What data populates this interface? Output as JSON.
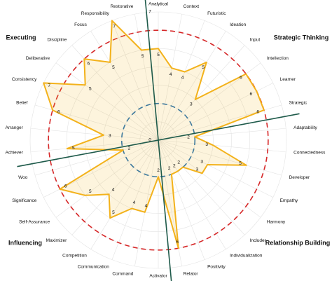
{
  "chart_data": {
    "type": "radar",
    "categories": [
      "Analytical",
      "Context",
      "Futuristic",
      "Ideation",
      "Input",
      "Intellection",
      "Learner",
      "Strategic",
      "Adaptability",
      "Connectedness",
      "Developer",
      "Empathy",
      "Harmony",
      "Includer",
      "Individualization",
      "Positivity",
      "Relator",
      "Activator",
      "Command",
      "Communication",
      "Competition",
      "Maximizer",
      "Self-Assurance",
      "Significance",
      "Woo",
      "Achiever",
      "Arranger",
      "Belief",
      "Consistency",
      "Deliberative",
      "Discipline",
      "Focus",
      "Responsibility",
      "Restorative"
    ],
    "values": [
      5,
      4,
      4,
      5,
      3,
      6,
      6,
      6,
      2,
      3,
      5,
      3,
      3,
      2,
      2,
      2,
      6,
      2,
      4,
      4,
      5,
      4,
      5,
      6,
      2,
      5,
      3,
      6,
      7,
      5,
      6,
      5,
      7,
      5
    ],
    "color": "#f3b21b",
    "rlim": [
      0,
      7
    ],
    "rticks": [
      0,
      7
    ],
    "grid": true,
    "reference_circles": [
      {
        "value": 6,
        "color": "#d62728"
      },
      {
        "value": 2,
        "color": "#1f6fb4"
      }
    ],
    "domains": [
      {
        "text": "Executing",
        "color": "#3fd3e0"
      },
      {
        "text": "Strategic Thinking",
        "color": "#f0648c"
      },
      {
        "text": "Influencing",
        "color": "#f5c518"
      },
      {
        "text": "Relationship Building",
        "color": "#f4897a"
      }
    ]
  }
}
